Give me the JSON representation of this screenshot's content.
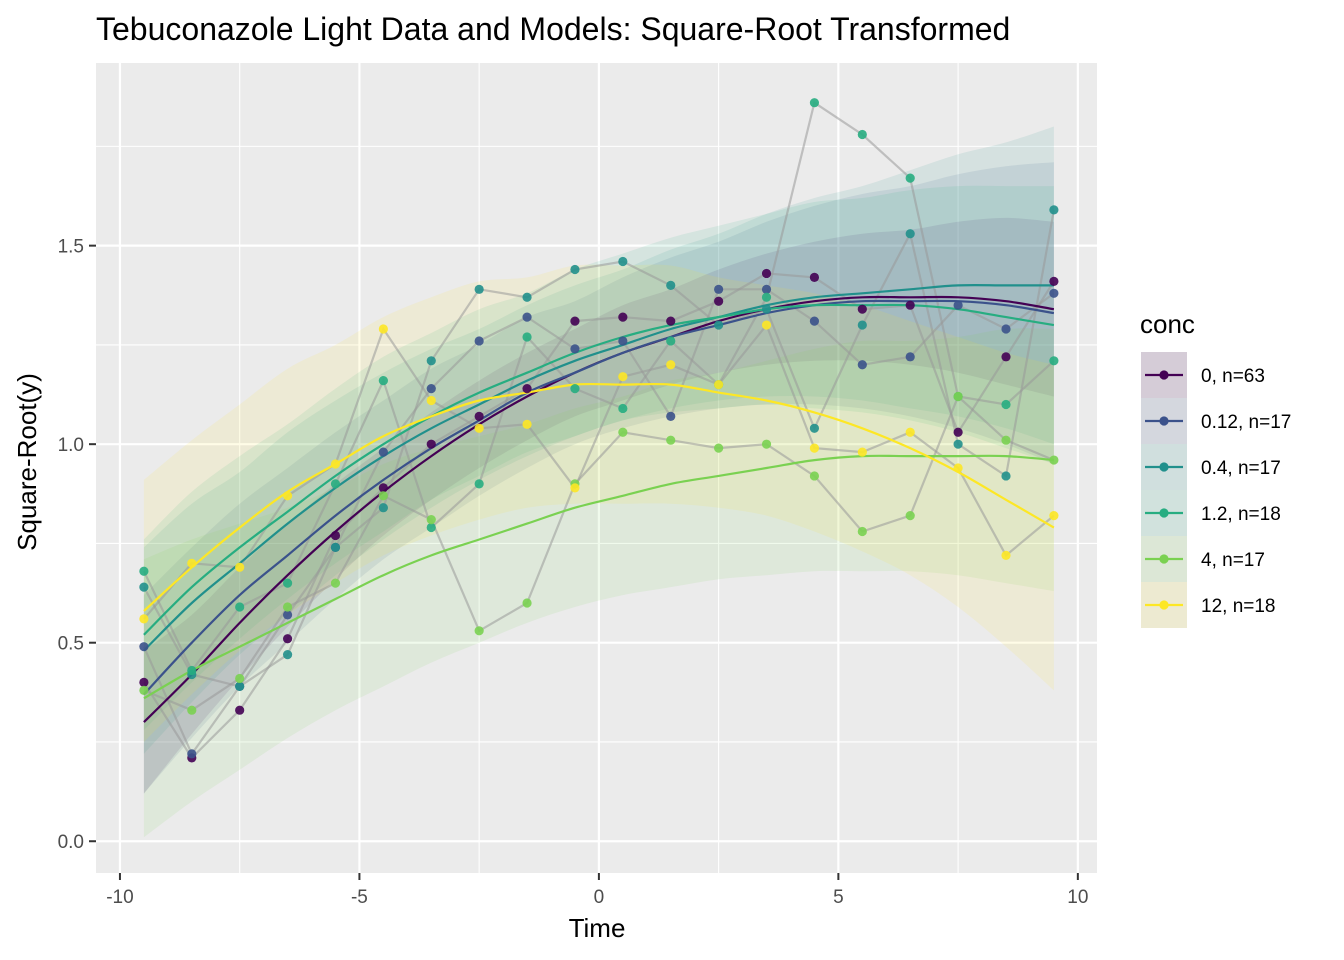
{
  "chart_data": {
    "type": "scatter",
    "title": "Tebuconazole Light Data and Models: Square-Root Transformed",
    "xlabel": "Time",
    "ylabel": "Square-Root(y)",
    "xlim": [
      -10.5,
      10.4
    ],
    "ylim": [
      -0.08,
      1.96
    ],
    "x_ticks": [
      -10,
      -5,
      0,
      5,
      10
    ],
    "x_tick_labels": [
      "-10",
      "-5",
      "0",
      "5",
      "10"
    ],
    "y_ticks": [
      0.0,
      0.5,
      1.0,
      1.5
    ],
    "y_tick_labels": [
      "0.0",
      "0.5",
      "1.0",
      "1.5"
    ],
    "grid": true,
    "legend_title": "conc",
    "legend_position": "right",
    "x": [
      -9.5,
      -8.5,
      -7.5,
      -6.5,
      -5.5,
      -4.5,
      -3.5,
      -2.5,
      -1.5,
      -0.5,
      0.5,
      1.5,
      2.5,
      3.5,
      4.5,
      5.5,
      6.5,
      7.5,
      8.5,
      9.5
    ],
    "series": [
      {
        "name": "0, n=63",
        "color": "#440154",
        "points": [
          0.4,
          0.21,
          0.33,
          0.51,
          0.77,
          0.89,
          1.0,
          1.07,
          1.14,
          1.31,
          1.32,
          1.31,
          1.36,
          1.43,
          1.42,
          1.34,
          1.35,
          1.03,
          1.22,
          1.41
        ],
        "fit": [
          0.3,
          0.42,
          0.55,
          0.67,
          0.78,
          0.88,
          0.97,
          1.05,
          1.12,
          1.18,
          1.23,
          1.27,
          1.31,
          1.34,
          1.36,
          1.37,
          1.37,
          1.37,
          1.36,
          1.34
        ],
        "lower": [
          0.12,
          0.27,
          0.41,
          0.54,
          0.66,
          0.77,
          0.86,
          0.94,
          1.01,
          1.07,
          1.11,
          1.15,
          1.18,
          1.2,
          1.21,
          1.21,
          1.2,
          1.18,
          1.15,
          1.12
        ],
        "upper": [
          0.48,
          0.57,
          0.69,
          0.8,
          0.9,
          0.99,
          1.08,
          1.16,
          1.23,
          1.29,
          1.35,
          1.39,
          1.44,
          1.48,
          1.51,
          1.53,
          1.54,
          1.56,
          1.57,
          1.56
        ]
      },
      {
        "name": "0.12, n=17",
        "color": "#3b528b",
        "points": [
          0.49,
          0.22,
          0.39,
          0.57,
          0.74,
          0.98,
          1.14,
          1.26,
          1.32,
          1.24,
          1.26,
          1.07,
          1.39,
          1.39,
          1.31,
          1.2,
          1.22,
          1.35,
          1.29,
          1.38
        ],
        "fit": [
          0.37,
          0.5,
          0.62,
          0.72,
          0.82,
          0.91,
          0.99,
          1.06,
          1.13,
          1.18,
          1.23,
          1.27,
          1.3,
          1.33,
          1.35,
          1.36,
          1.36,
          1.36,
          1.35,
          1.33
        ],
        "lower": [
          0.12,
          0.26,
          0.39,
          0.5,
          0.61,
          0.71,
          0.79,
          0.87,
          0.94,
          1.0,
          1.04,
          1.07,
          1.09,
          1.1,
          1.1,
          1.09,
          1.07,
          1.04,
          1.0,
          0.95
        ],
        "upper": [
          0.62,
          0.74,
          0.85,
          0.94,
          1.03,
          1.11,
          1.19,
          1.25,
          1.32,
          1.36,
          1.42,
          1.47,
          1.51,
          1.56,
          1.6,
          1.63,
          1.65,
          1.68,
          1.7,
          1.71
        ]
      },
      {
        "name": "0.4, n=17",
        "color": "#21908c",
        "points": [
          0.64,
          0.42,
          0.39,
          0.47,
          0.74,
          0.84,
          1.21,
          1.39,
          1.37,
          1.44,
          1.46,
          1.4,
          1.3,
          1.34,
          1.04,
          1.3,
          1.53,
          1.0,
          0.92,
          1.59
        ],
        "fit": [
          0.48,
          0.6,
          0.7,
          0.8,
          0.89,
          0.97,
          1.04,
          1.1,
          1.16,
          1.21,
          1.25,
          1.29,
          1.32,
          1.35,
          1.37,
          1.38,
          1.39,
          1.4,
          1.4,
          1.4
        ],
        "lower": [
          0.22,
          0.35,
          0.47,
          0.57,
          0.67,
          0.76,
          0.84,
          0.91,
          0.97,
          1.02,
          1.06,
          1.09,
          1.11,
          1.12,
          1.12,
          1.11,
          1.09,
          1.07,
          1.04,
          1.0
        ],
        "upper": [
          0.74,
          0.85,
          0.93,
          1.03,
          1.11,
          1.18,
          1.24,
          1.29,
          1.35,
          1.4,
          1.44,
          1.49,
          1.53,
          1.58,
          1.62,
          1.65,
          1.69,
          1.73,
          1.76,
          1.8
        ]
      },
      {
        "name": "1.2, n=18",
        "color": "#27ad81",
        "points": [
          0.68,
          0.43,
          0.59,
          0.65,
          0.9,
          1.16,
          0.79,
          0.9,
          1.27,
          1.14,
          1.09,
          1.26,
          1.15,
          1.37,
          1.86,
          1.78,
          1.67,
          1.12,
          1.1,
          1.21
        ],
        "fit": [
          0.52,
          0.64,
          0.74,
          0.83,
          0.92,
          1.0,
          1.07,
          1.13,
          1.18,
          1.23,
          1.27,
          1.3,
          1.32,
          1.34,
          1.35,
          1.35,
          1.35,
          1.34,
          1.32,
          1.3
        ],
        "lower": [
          0.28,
          0.4,
          0.51,
          0.61,
          0.7,
          0.78,
          0.86,
          0.92,
          0.98,
          1.02,
          1.06,
          1.08,
          1.09,
          1.1,
          1.09,
          1.08,
          1.06,
          1.03,
          0.99,
          0.95
        ],
        "upper": [
          0.76,
          0.88,
          0.97,
          1.05,
          1.14,
          1.22,
          1.28,
          1.34,
          1.38,
          1.44,
          1.48,
          1.52,
          1.55,
          1.58,
          1.61,
          1.62,
          1.64,
          1.65,
          1.65,
          1.65
        ]
      },
      {
        "name": "4, n=17",
        "color": "#7ad151",
        "points": [
          0.38,
          0.33,
          0.41,
          0.59,
          0.65,
          0.87,
          0.81,
          0.53,
          0.6,
          0.9,
          1.03,
          1.01,
          0.99,
          1.0,
          0.92,
          0.78,
          0.82,
          1.12,
          1.01,
          0.96
        ],
        "fit": [
          0.36,
          0.43,
          0.49,
          0.55,
          0.61,
          0.67,
          0.72,
          0.76,
          0.8,
          0.84,
          0.87,
          0.9,
          0.92,
          0.94,
          0.96,
          0.97,
          0.97,
          0.97,
          0.97,
          0.96
        ],
        "lower": [
          0.01,
          0.1,
          0.18,
          0.26,
          0.33,
          0.39,
          0.45,
          0.5,
          0.55,
          0.59,
          0.62,
          0.64,
          0.66,
          0.67,
          0.68,
          0.68,
          0.68,
          0.67,
          0.65,
          0.63
        ],
        "upper": [
          0.71,
          0.76,
          0.8,
          0.84,
          0.89,
          0.95,
          0.99,
          1.02,
          1.05,
          1.09,
          1.12,
          1.16,
          1.18,
          1.21,
          1.24,
          1.26,
          1.26,
          1.27,
          1.29,
          1.29
        ]
      },
      {
        "name": "12, n=18",
        "color": "#fde725",
        "points": [
          0.56,
          0.7,
          0.69,
          0.87,
          0.95,
          1.29,
          1.11,
          1.04,
          1.05,
          0.89,
          1.17,
          1.2,
          1.15,
          1.3,
          0.99,
          0.98,
          1.03,
          0.94,
          0.72,
          0.82
        ],
        "fit": [
          0.58,
          0.69,
          0.79,
          0.88,
          0.95,
          1.02,
          1.07,
          1.11,
          1.13,
          1.15,
          1.15,
          1.15,
          1.13,
          1.11,
          1.08,
          1.04,
          0.99,
          0.93,
          0.86,
          0.79
        ],
        "lower": [
          0.25,
          0.37,
          0.48,
          0.57,
          0.65,
          0.72,
          0.77,
          0.81,
          0.84,
          0.85,
          0.85,
          0.85,
          0.84,
          0.82,
          0.78,
          0.73,
          0.67,
          0.59,
          0.49,
          0.38
        ],
        "upper": [
          0.91,
          1.01,
          1.1,
          1.19,
          1.25,
          1.32,
          1.37,
          1.41,
          1.42,
          1.45,
          1.45,
          1.45,
          1.42,
          1.4,
          1.38,
          1.35,
          1.31,
          1.27,
          1.23,
          1.2
        ]
      }
    ]
  }
}
